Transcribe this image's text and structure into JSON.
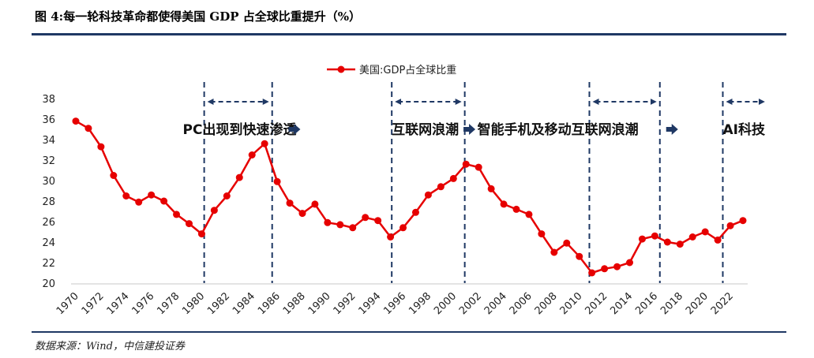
{
  "figure": {
    "title": "图 4:每一轮科技革命都使得美国 GDP 占全球比重提升（%）",
    "source": "数据来源：Wind，中信建投证券"
  },
  "colors": {
    "line": "#e60000",
    "divider": "#1f3864",
    "arrow": "#1f3864"
  },
  "chart_data": {
    "type": "line",
    "title": "",
    "xlabel": "",
    "ylabel": "",
    "ylim": [
      20,
      38
    ],
    "yticks": [
      20,
      22,
      24,
      26,
      28,
      30,
      32,
      34,
      36,
      38
    ],
    "xlim": [
      1970,
      2023
    ],
    "xticks": [
      1970,
      1972,
      1974,
      1976,
      1978,
      1980,
      1982,
      1984,
      1986,
      1988,
      1990,
      1992,
      1994,
      1996,
      1998,
      2000,
      2002,
      2004,
      2006,
      2008,
      2010,
      2012,
      2014,
      2016,
      2018,
      2020,
      2022
    ],
    "legend": {
      "position": "top-center",
      "label": "美国:GDP占全球比重"
    },
    "series": [
      {
        "name": "美国:GDP占全球比重",
        "x": [
          1970,
          1971,
          1972,
          1973,
          1974,
          1975,
          1976,
          1977,
          1978,
          1979,
          1980,
          1981,
          1982,
          1983,
          1984,
          1985,
          1986,
          1987,
          1988,
          1989,
          1990,
          1991,
          1992,
          1993,
          1994,
          1995,
          1996,
          1997,
          1998,
          1999,
          2000,
          2001,
          2002,
          2003,
          2004,
          2005,
          2006,
          2007,
          2008,
          2009,
          2010,
          2011,
          2012,
          2013,
          2014,
          2015,
          2016,
          2017,
          2018,
          2019,
          2020,
          2021,
          2022,
          2023
        ],
        "values": [
          35.8,
          35.1,
          33.3,
          30.5,
          28.5,
          27.9,
          28.6,
          28.0,
          26.7,
          25.8,
          24.8,
          27.1,
          28.5,
          30.3,
          32.5,
          33.6,
          29.9,
          27.8,
          26.8,
          27.7,
          25.9,
          25.7,
          25.4,
          26.4,
          26.1,
          24.5,
          25.4,
          26.9,
          28.6,
          29.4,
          30.2,
          31.6,
          31.3,
          29.2,
          27.7,
          27.2,
          26.7,
          24.8,
          23.0,
          23.9,
          22.6,
          21.0,
          21.4,
          21.6,
          22.0,
          24.3,
          24.6,
          24.0,
          23.8,
          24.5,
          25.0,
          24.2,
          25.6,
          26.1
        ]
      }
    ],
    "phase_dividers": [
      1980.2,
      1985.6,
      1995.1,
      2000.9,
      2010.8,
      2016.4,
      2021.4
    ],
    "phase_spans": [
      [
        1980.2,
        1985.6
      ],
      [
        1995.1,
        2000.9
      ],
      [
        2010.8,
        2016.4
      ],
      [
        2021.4,
        2025.0
      ]
    ],
    "phases": [
      {
        "label": "PC出现到快速渗透",
        "x": 1978.5,
        "y": 35.0
      },
      {
        "label": "互联网浪潮",
        "x": 1995.1,
        "y": 35.0
      },
      {
        "label": "智能手机及移动互联网浪潮",
        "x": 2001.9,
        "y": 35.0
      },
      {
        "label": "AI科技",
        "x": 2021.4,
        "y": 35.0
      }
    ],
    "phase_arrows": [
      {
        "x": 1986.9,
        "y": 35.0
      },
      {
        "x": 2000.8,
        "y": 35.0
      },
      {
        "x": 2016.9,
        "y": 35.0
      }
    ]
  }
}
